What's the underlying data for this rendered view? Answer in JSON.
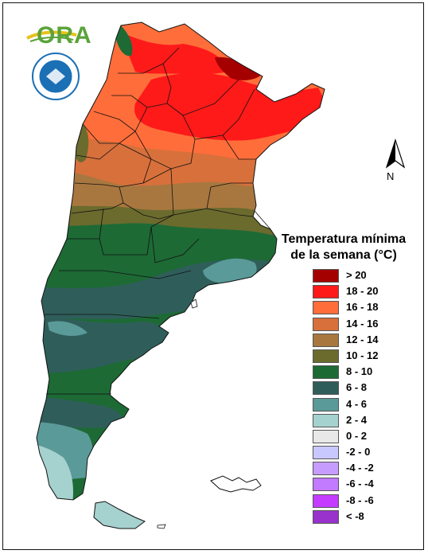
{
  "logo": {
    "text": "ORA"
  },
  "compass": {
    "label": "N"
  },
  "legend": {
    "title_line1": "Temperatura mínima",
    "title_line2": "de la semana (°C)",
    "items": [
      {
        "label": "> 20",
        "color": "#a50000"
      },
      {
        "label": "18 - 20",
        "color": "#ff1a1a"
      },
      {
        "label": "16 - 18",
        "color": "#ff6e3a"
      },
      {
        "label": "14 - 16",
        "color": "#d8703c"
      },
      {
        "label": "12 - 14",
        "color": "#a8773f"
      },
      {
        "label": "10 - 12",
        "color": "#6b6b2e"
      },
      {
        "label": "8 - 10",
        "color": "#1d6a35"
      },
      {
        "label": "6 - 8",
        "color": "#2f5e5a"
      },
      {
        "label": "4 - 6",
        "color": "#5a9a98"
      },
      {
        "label": "2 - 4",
        "color": "#a5d1cf"
      },
      {
        "label": "0 - 2",
        "color": "#e8e8e8"
      },
      {
        "label": "-2 - 0",
        "color": "#c8c8ff"
      },
      {
        "label": "-4 - -2",
        "color": "#c69cff"
      },
      {
        "label": "-6 - -4",
        "color": "#c27aff"
      },
      {
        "label": "-8 - -6",
        "color": "#c43cff"
      },
      {
        "label": "< -8",
        "color": "#9932cc"
      }
    ]
  }
}
